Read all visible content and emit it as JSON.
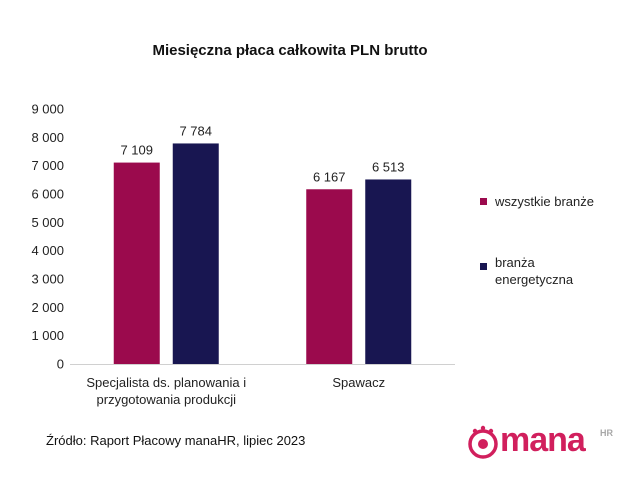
{
  "chart_data": {
    "type": "bar",
    "title": "Miesięczna płaca całkowita PLN brutto",
    "categories": [
      "Specjalista ds. planowania i przygotowania produkcji",
      "Spawacz"
    ],
    "category_lines": [
      [
        "Specjalista ds. planowania i",
        "przygotowania produkcji"
      ],
      [
        "Spawacz"
      ]
    ],
    "series": [
      {
        "name": "wszystkie branże",
        "values": [
          7109,
          6167
        ],
        "value_labels": [
          "7 109",
          "6 167"
        ],
        "color": "#9b0a4d"
      },
      {
        "name": "branża energetyczna",
        "values": [
          7784,
          6513
        ],
        "value_labels": [
          "7 784",
          "6 513"
        ],
        "color": "#181651"
      }
    ],
    "legend_lines": [
      [
        "wszystkie branże"
      ],
      [
        "branża",
        "energetyczna"
      ]
    ],
    "ylim": [
      0,
      9000
    ],
    "yticks": [
      0,
      1000,
      2000,
      3000,
      4000,
      5000,
      6000,
      7000,
      8000,
      9000
    ],
    "ytick_labels": [
      "0",
      "1 000",
      "2 000",
      "3 000",
      "4 000",
      "5 000",
      "6 000",
      "7 000",
      "8 000",
      "9 000"
    ],
    "grid": false,
    "legend_position": "right"
  },
  "footer": {
    "source": "Źródło: Raport Płacowy manaHR, lipiec 2023",
    "logo_text": "mana",
    "logo_sup": "HR"
  }
}
